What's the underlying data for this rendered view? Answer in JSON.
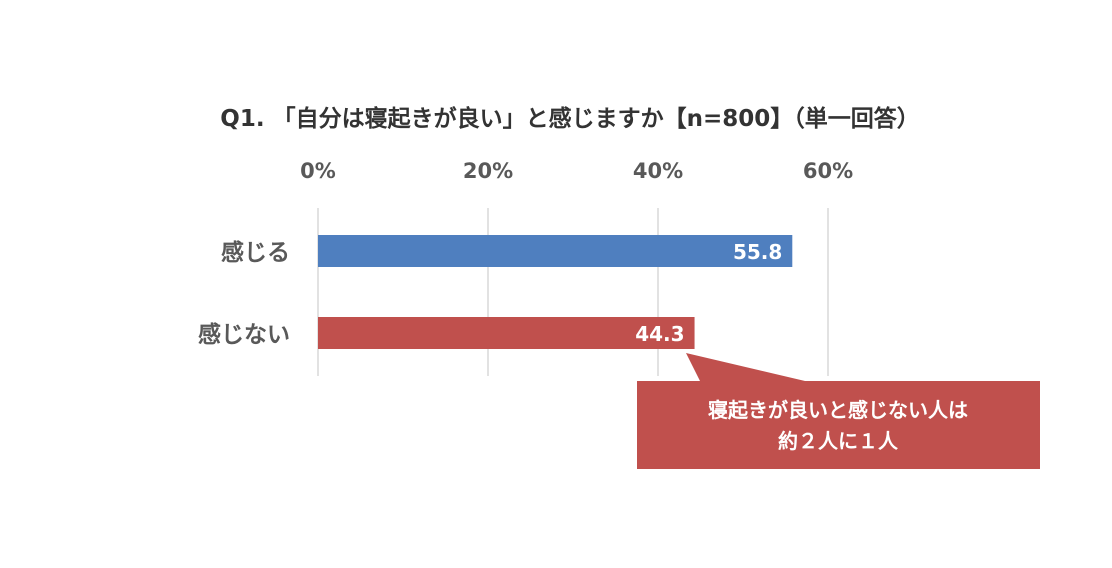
{
  "chart_data": {
    "type": "bar",
    "orientation": "horizontal",
    "title": "Q1. 「自分は寝起きが良い」と感じますか【n=800】（単一回答）",
    "categories": [
      "感じる",
      "感じない"
    ],
    "values": [
      55.8,
      44.3
    ],
    "value_labels": [
      "55.8",
      "44.3"
    ],
    "colors": [
      "#4f7fbf",
      "#c0504d"
    ],
    "xlim": [
      0,
      60
    ],
    "xticks": [
      0,
      20,
      40,
      60
    ],
    "xtick_labels": [
      "0%",
      "20%",
      "40%",
      "60%"
    ],
    "xaxis_position": "top",
    "grid": true,
    "xlabel": "",
    "ylabel": "",
    "annotation": {
      "lines": [
        "寝起きが良いと感じない人は",
        "約２人に１人"
      ],
      "color": "#c0504d",
      "points_to": "感じない"
    }
  }
}
